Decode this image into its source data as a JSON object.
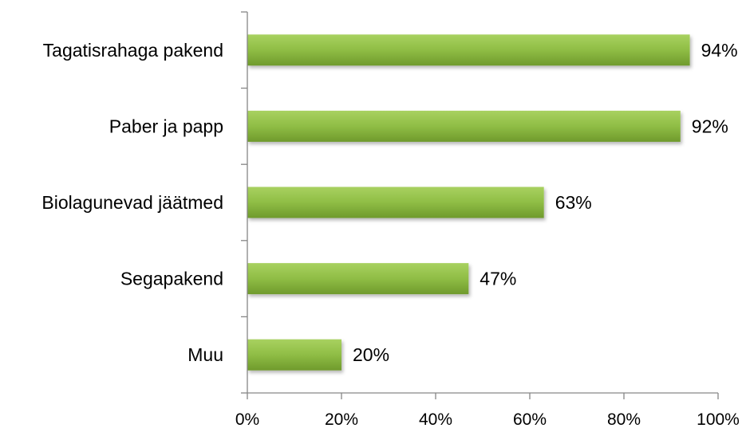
{
  "chart_data": {
    "type": "bar",
    "orientation": "horizontal",
    "categories": [
      "Tagatisrahaga pakend",
      "Paber ja papp",
      "Biolagunevad jäätmed",
      "Segapakend",
      "Muu"
    ],
    "values": [
      94,
      92,
      63,
      47,
      20
    ],
    "value_labels": [
      "94%",
      "92%",
      "63%",
      "47%",
      "20%"
    ],
    "x_ticks": [
      "0%",
      "20%",
      "40%",
      "60%",
      "80%",
      "100%"
    ],
    "x_tick_values": [
      0,
      20,
      40,
      60,
      80,
      100
    ],
    "xlim": [
      0,
      100
    ],
    "grid": false,
    "legend": "none",
    "colors": {
      "bar_top": "#a8d160",
      "bar_mid": "#8fbd45",
      "bar_bottom": "#6f9a2c",
      "axis": "#868686"
    }
  }
}
